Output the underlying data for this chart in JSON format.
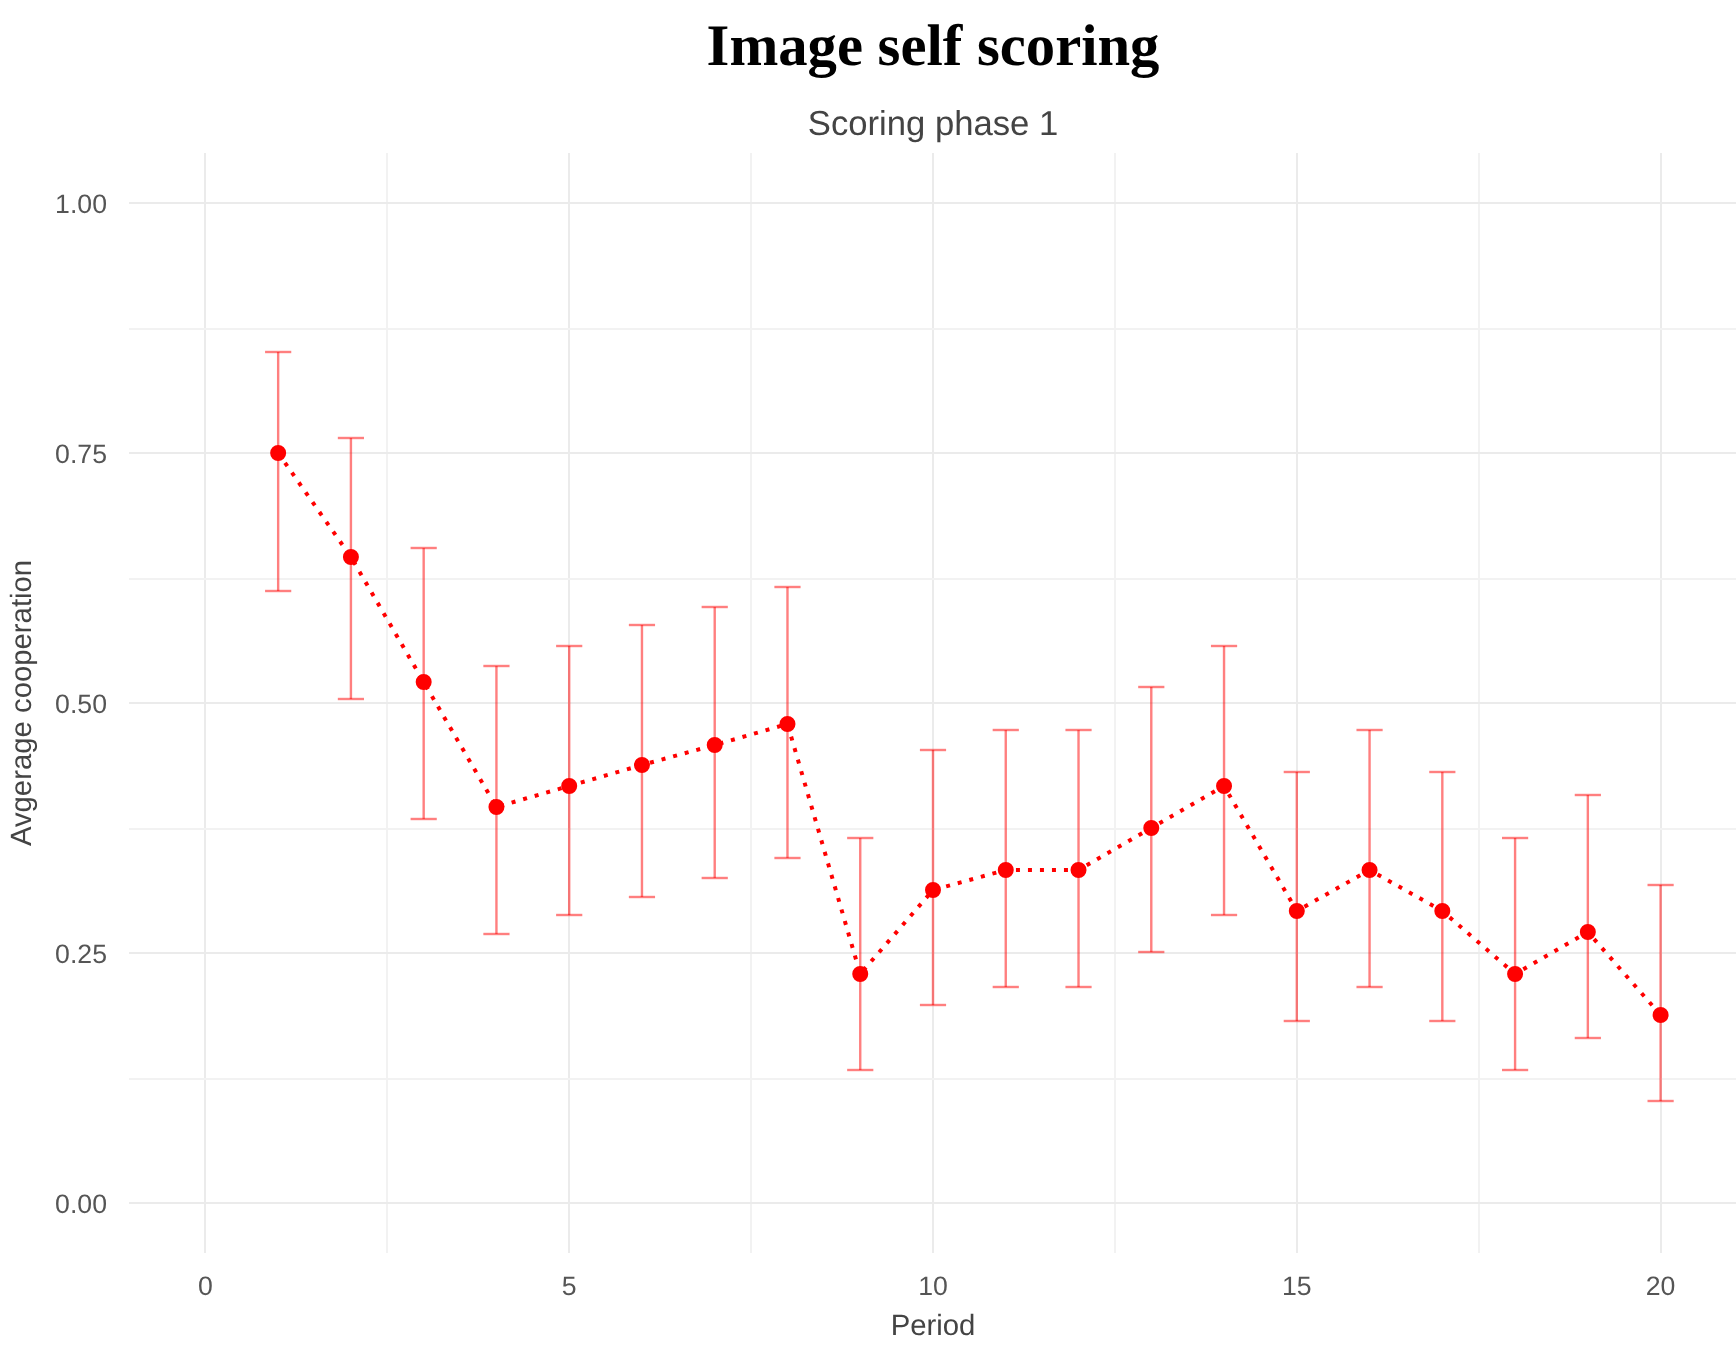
{
  "chart_data": {
    "type": "line",
    "title": "Image self scoring",
    "subtitle": "Scoring phase 1",
    "xlabel": "Period",
    "ylabel": "Avgerage cooperation",
    "x": [
      1,
      2,
      3,
      4,
      5,
      6,
      7,
      8,
      9,
      10,
      11,
      12,
      13,
      14,
      15,
      16,
      17,
      18,
      19,
      20
    ],
    "series": [
      {
        "color": "#ff0000",
        "values": [
          0.75,
          0.646,
          0.521,
          0.396,
          0.417,
          0.438,
          0.458,
          0.479,
          0.229,
          0.313,
          0.333,
          0.333,
          0.375,
          0.417,
          0.292,
          0.333,
          0.292,
          0.229,
          0.271,
          0.188
        ],
        "errors": [
          [
            0.612,
            0.851
          ],
          [
            0.504,
            0.765
          ],
          [
            0.384,
            0.655
          ],
          [
            0.269,
            0.537
          ],
          [
            0.288,
            0.557
          ],
          [
            0.306,
            0.578
          ],
          [
            0.325,
            0.596
          ],
          [
            0.345,
            0.616
          ],
          [
            0.133,
            0.365
          ],
          [
            0.198,
            0.453
          ],
          [
            0.216,
            0.473
          ],
          [
            0.216,
            0.473
          ],
          [
            0.251,
            0.516
          ],
          [
            0.288,
            0.557
          ],
          [
            0.182,
            0.431
          ],
          [
            0.216,
            0.473
          ],
          [
            0.182,
            0.431
          ],
          [
            0.133,
            0.365
          ],
          [
            0.165,
            0.408
          ],
          [
            0.102,
            0.318
          ]
        ]
      }
    ],
    "xlim": [
      -1.05,
      21.05
    ],
    "xticks": [
      0,
      5,
      10,
      15,
      20
    ],
    "ylim": [
      -0.05,
      1.05
    ],
    "yticks": [
      {
        "value": 0,
        "label": "0.00"
      },
      {
        "value": 0.25,
        "label": "0.25"
      },
      {
        "value": 0.5,
        "label": "0.50"
      },
      {
        "value": 0.75,
        "label": "0.75"
      },
      {
        "value": 1,
        "label": "1.00"
      }
    ],
    "grid": true,
    "marker": "circle",
    "line_style": "dotted"
  }
}
